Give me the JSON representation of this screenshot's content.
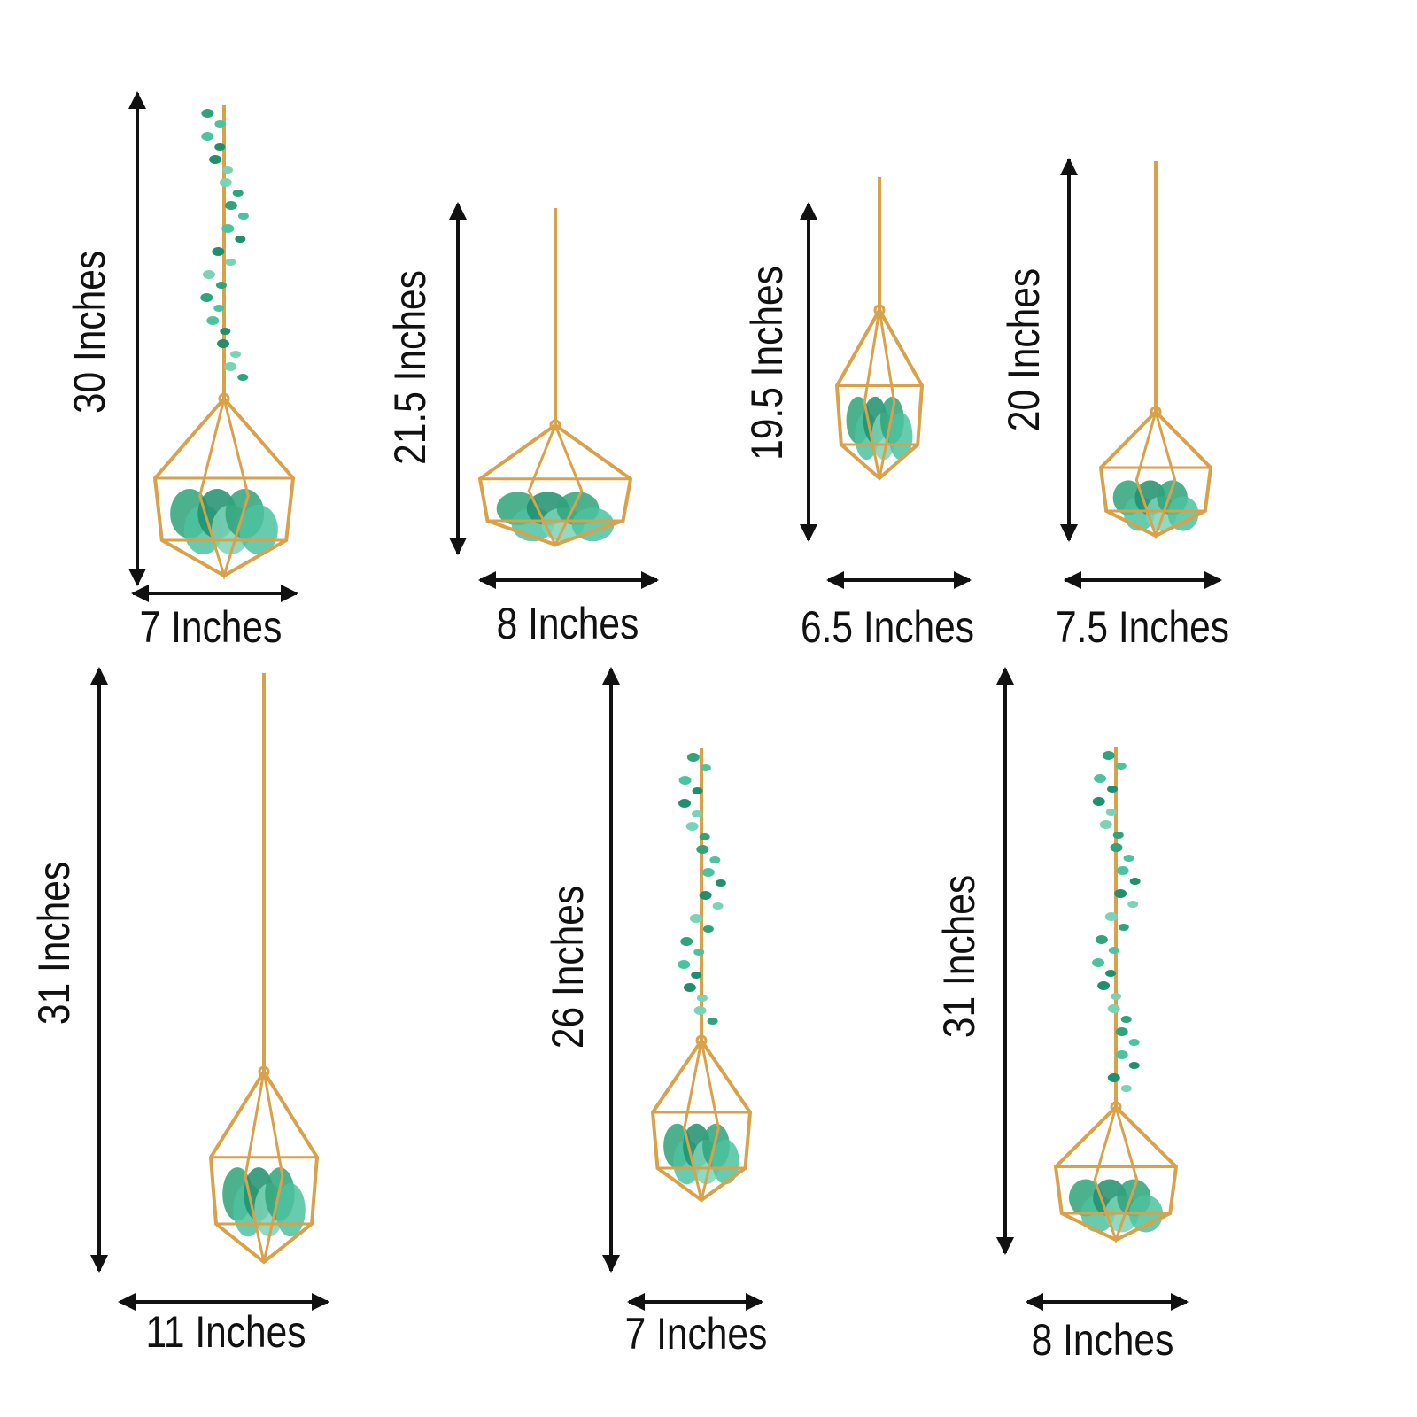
{
  "items": [
    {
      "height": "30 Inches",
      "width": "7 Inches"
    },
    {
      "height": "21.5 Inches",
      "width": "8 Inches"
    },
    {
      "height": "19.5 Inches",
      "width": "6.5 Inches"
    },
    {
      "height": "20 Inches",
      "width": "7.5 Inches"
    },
    {
      "height": "31 Inches",
      "width": "11 Inches"
    },
    {
      "height": "26 Inches",
      "width": "7 Inches"
    },
    {
      "height": "31 Inches",
      "width": "8 Inches"
    }
  ]
}
